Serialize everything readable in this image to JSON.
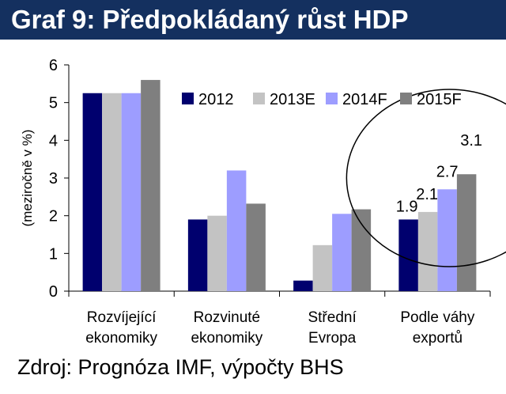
{
  "header": {
    "title": "Graf 9: Předpokládaný růst HDP"
  },
  "footer": {
    "source": "Zdroj: Prognóza IMF, výpočty BHS"
  },
  "colors": {
    "title_bg": "#14305f",
    "series": [
      "#00006e",
      "#c3c3c3",
      "#9d9dff",
      "#7f7f7f"
    ]
  },
  "chart_data": {
    "type": "bar",
    "ylabel": "(meziročně v %)",
    "ylim": [
      0,
      6
    ],
    "yticks": [
      "0",
      "1",
      "2",
      "3",
      "4",
      "5",
      "6"
    ],
    "grid": false,
    "legend_position": "top-right",
    "categories": [
      [
        "Rozvíjející",
        "ekonomiky"
      ],
      [
        "Rozvinuté",
        "ekonomiky"
      ],
      [
        "Střední",
        "Evropa"
      ],
      [
        "Podle váhy",
        "exportů"
      ]
    ],
    "series": [
      {
        "name": "2012",
        "values": [
          5.25,
          1.9,
          0.28,
          1.9
        ]
      },
      {
        "name": "2013E",
        "values": [
          5.25,
          2.0,
          1.22,
          2.1
        ]
      },
      {
        "name": "2014F",
        "values": [
          5.25,
          3.2,
          2.05,
          2.7
        ]
      },
      {
        "name": "2015F",
        "values": [
          5.6,
          2.32,
          2.17,
          3.1
        ]
      }
    ],
    "data_labels": {
      "category_index": 3,
      "labels": [
        "1.9",
        "2.1",
        "2.7",
        "3.1"
      ]
    },
    "annotation": "ellipse around last group"
  }
}
